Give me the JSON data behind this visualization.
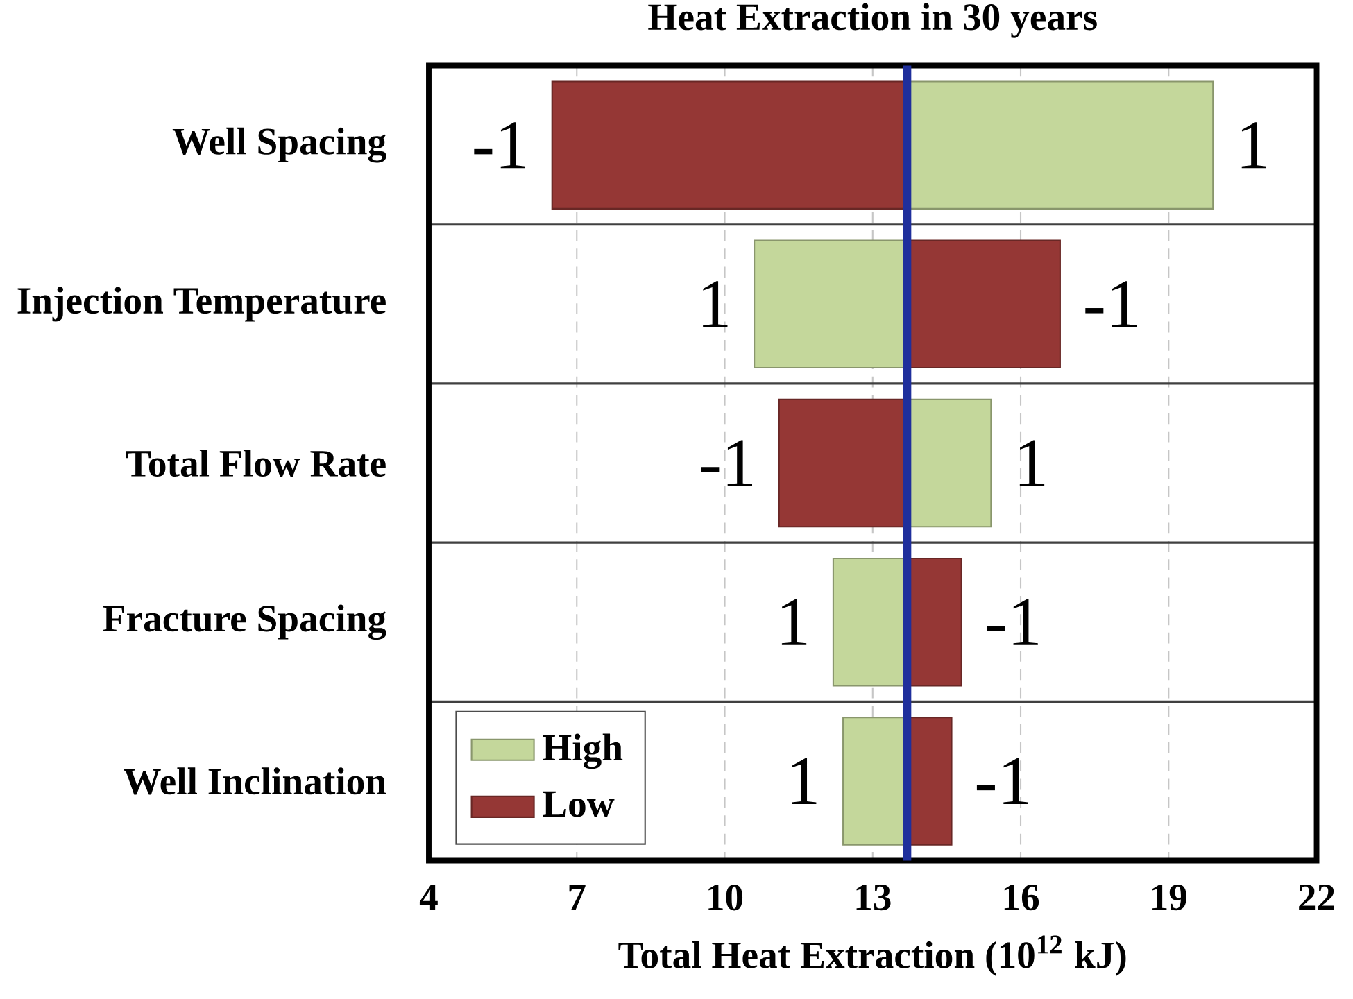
{
  "chart_data": {
    "type": "bar",
    "orientation": "horizontal",
    "title": "Heat Extraction in 30 years",
    "xlabel": "Total Heat Extraction (10$^{12}$ kJ)",
    "categories": [
      "Well Spacing",
      "Injection Temperature",
      "Total Flow Rate",
      "Fracture Spacing",
      "Well Inclination"
    ],
    "series": [
      {
        "name": "High",
        "color": "#c4d79b",
        "base": [
          13.7,
          13.7,
          13.7,
          13.7,
          13.7
        ],
        "values": [
          6.2,
          -3.1,
          1.7,
          -1.5,
          -1.3
        ]
      },
      {
        "name": "Low",
        "color": "#953735",
        "base": [
          13.7,
          13.7,
          13.7,
          13.7,
          13.7
        ],
        "values": [
          -7.2,
          3.1,
          -2.6,
          1.1,
          0.9
        ]
      }
    ],
    "annotations": [
      {
        "text": "-1",
        "x": 6.5,
        "y": "Well Spacing"
      },
      {
        "text": "1",
        "x": 19.9,
        "y": "Well Spacing"
      },
      {
        "text": "1",
        "x": 10.6,
        "y": "Injection Temperature"
      },
      {
        "text": "-1",
        "x": 16.8,
        "y": "Injection Temperature"
      },
      {
        "text": "-1",
        "x": 11.1,
        "y": "Total Flow Rate"
      },
      {
        "text": "1",
        "x": 15.4,
        "y": "Total Flow Rate"
      },
      {
        "text": "1",
        "x": 12.2,
        "y": "Fracture Spacing"
      },
      {
        "text": "-1",
        "x": 14.8,
        "y": "Fracture Spacing"
      },
      {
        "text": "1",
        "x": 12.4,
        "y": "Well Inclination"
      },
      {
        "text": "-1",
        "x": 14.6,
        "y": "Well Inclination"
      }
    ],
    "xlim": [
      4,
      22
    ],
    "xticks": [
      4,
      7,
      10,
      13,
      16,
      19,
      22
    ],
    "ref_lines": [
      {
        "axis": "x",
        "value": 13.7,
        "color": "#1f2f9c"
      }
    ],
    "grid": true,
    "legend": "bottom left"
  }
}
